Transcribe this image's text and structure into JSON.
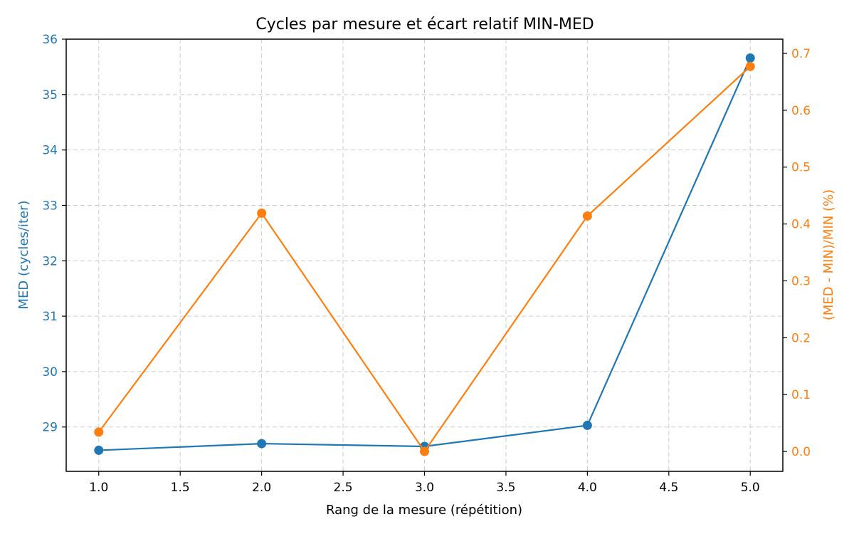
{
  "chart_data": {
    "type": "line",
    "title": "Cycles par mesure et écart relatif MIN-MED",
    "xlabel": "Rang de la mesure (répétition)",
    "ylabel_left": "MED (cycles/iter)",
    "ylabel_right": "(MED - MIN)/MIN (%)",
    "x_ticks": [
      "1.0",
      "1.5",
      "2.0",
      "2.5",
      "3.0",
      "3.5",
      "4.0",
      "4.5",
      "5.0"
    ],
    "y_left_ticks": [
      "29",
      "30",
      "31",
      "32",
      "33",
      "34",
      "35",
      "36"
    ],
    "y_right_ticks": [
      "0.0",
      "0.1",
      "0.2",
      "0.3",
      "0.4",
      "0.5",
      "0.6",
      "0.7"
    ],
    "xlim": [
      0.8,
      5.2
    ],
    "ylim_left": [
      28.2,
      36.0
    ],
    "ylim_right": [
      -0.035,
      0.725
    ],
    "grid": true,
    "series": [
      {
        "axis": "left",
        "color": "#1f77b4",
        "x": [
          1,
          2,
          3,
          4,
          5
        ],
        "y": [
          28.58,
          28.7,
          28.65,
          29.03,
          35.66
        ]
      },
      {
        "axis": "right",
        "color": "#ff7f0e",
        "x": [
          1,
          2,
          3,
          4,
          5
        ],
        "y": [
          0.034,
          0.419,
          0.0,
          0.414,
          0.677
        ]
      }
    ]
  }
}
